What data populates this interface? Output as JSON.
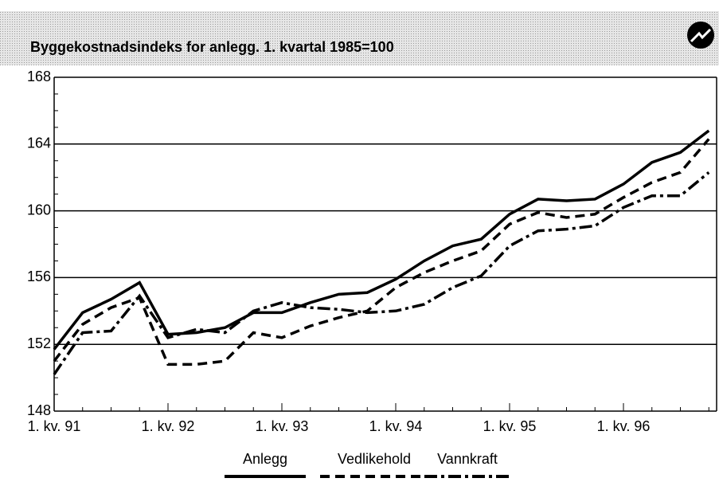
{
  "chart_data": {
    "type": "line",
    "title": "Byggekostnadsindeks for anlegg. 1. kvartal 1985=100",
    "categories": [
      "1. kv. 91",
      null,
      null,
      null,
      "1. kv. 92",
      null,
      null,
      null,
      "1. kv. 93",
      null,
      null,
      null,
      "1. kv. 94",
      null,
      null,
      null,
      "1. kv. 95",
      null,
      null,
      null,
      "1. kv. 96",
      null,
      null,
      null
    ],
    "series": [
      {
        "name": "Anlegg",
        "color": "#000000",
        "linestyle": "solid",
        "values": [
          151.7,
          153.9,
          154.7,
          155.7,
          152.6,
          152.7,
          153.0,
          153.9,
          153.9,
          154.5,
          155.0,
          155.1,
          155.9,
          157.0,
          157.9,
          158.3,
          159.8,
          160.7,
          160.6,
          160.7,
          161.6,
          162.9,
          163.5,
          164.8
        ]
      },
      {
        "name": "Vedlikehold",
        "color": "#000000",
        "linestyle": "dashed",
        "values": [
          151.0,
          153.2,
          154.2,
          154.8,
          150.8,
          150.8,
          151.0,
          152.7,
          152.4,
          153.1,
          153.6,
          154.0,
          155.4,
          156.3,
          157.0,
          157.6,
          159.2,
          159.9,
          159.6,
          159.8,
          160.8,
          161.7,
          162.3,
          164.3
        ]
      },
      {
        "name": "Vannkraft",
        "color": "#000000",
        "linestyle": "dashdot",
        "values": [
          150.2,
          152.7,
          152.8,
          154.9,
          152.4,
          152.9,
          152.7,
          154.0,
          154.5,
          154.2,
          154.1,
          153.9,
          154.0,
          154.4,
          155.4,
          156.1,
          157.9,
          158.8,
          158.9,
          159.1,
          160.2,
          160.9,
          160.9,
          162.3
        ]
      }
    ],
    "ylim": [
      148,
      168
    ],
    "yticks": [
      148,
      152,
      156,
      160,
      164,
      168
    ],
    "grid": true
  }
}
